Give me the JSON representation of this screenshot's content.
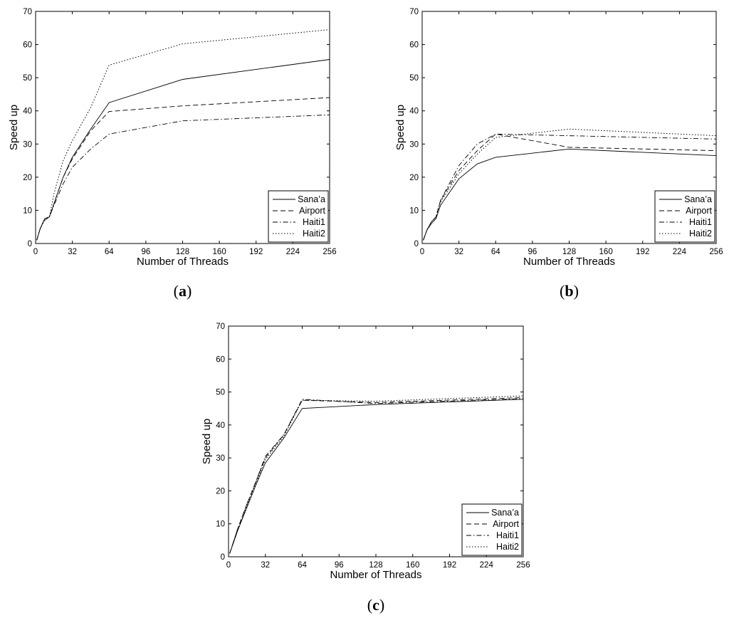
{
  "chart_data": [
    {
      "panel": "a",
      "type": "line",
      "caption": {
        "open": "(",
        "letter": "a",
        "close": ")"
      },
      "xlabel": "Number of Threads",
      "ylabel": "Speed up",
      "xlim": [
        0,
        256
      ],
      "ylim": [
        0,
        70
      ],
      "xticks": [
        0,
        32,
        64,
        96,
        128,
        160,
        192,
        224,
        256
      ],
      "yticks": [
        0,
        10,
        20,
        30,
        40,
        50,
        60,
        70
      ],
      "grid": false,
      "legend_position": "bottom-right",
      "series": [
        {
          "name": "Sana’a",
          "dash": "solid",
          "points": [
            [
              1,
              1
            ],
            [
              4,
              4.5
            ],
            [
              8,
              7.5
            ],
            [
              12,
              8
            ],
            [
              16,
              12
            ],
            [
              24,
              20
            ],
            [
              32,
              26
            ],
            [
              48,
              34.5
            ],
            [
              64,
              42.5
            ],
            [
              128,
              49.5
            ],
            [
              256,
              55.5
            ]
          ]
        },
        {
          "name": "Airport",
          "dash": "dashed",
          "points": [
            [
              1,
              1
            ],
            [
              4,
              4.5
            ],
            [
              8,
              7.5
            ],
            [
              12,
              8
            ],
            [
              16,
              12
            ],
            [
              24,
              20
            ],
            [
              32,
              25.5
            ],
            [
              48,
              34
            ],
            [
              64,
              39.8
            ],
            [
              128,
              41.5
            ],
            [
              256,
              44
            ]
          ]
        },
        {
          "name": "Haiti1",
          "dash": "dashdot",
          "points": [
            [
              1,
              1
            ],
            [
              4,
              4.5
            ],
            [
              8,
              7
            ],
            [
              12,
              8
            ],
            [
              16,
              11.5
            ],
            [
              24,
              18
            ],
            [
              32,
              23
            ],
            [
              48,
              28.5
            ],
            [
              64,
              33
            ],
            [
              128,
              37
            ],
            [
              256,
              38.8
            ]
          ]
        },
        {
          "name": "Haiti2",
          "dash": "dotted",
          "points": [
            [
              1,
              1
            ],
            [
              4,
              4.5
            ],
            [
              8,
              7.5
            ],
            [
              12,
              8
            ],
            [
              16,
              15
            ],
            [
              24,
              25
            ],
            [
              32,
              31
            ],
            [
              48,
              41
            ],
            [
              64,
              53.8
            ],
            [
              128,
              60.2
            ],
            [
              256,
              64.5
            ]
          ]
        }
      ]
    },
    {
      "panel": "b",
      "type": "line",
      "caption": {
        "open": "(",
        "letter": "b",
        "close": ")"
      },
      "xlabel": "Number of Threads",
      "ylabel": "Speed up",
      "xlim": [
        0,
        256
      ],
      "ylim": [
        0,
        70
      ],
      "xticks": [
        0,
        32,
        64,
        96,
        128,
        160,
        192,
        224,
        256
      ],
      "yticks": [
        0,
        10,
        20,
        30,
        40,
        50,
        60,
        70
      ],
      "grid": false,
      "legend_position": "bottom-right",
      "series": [
        {
          "name": "Sana’a",
          "dash": "solid",
          "points": [
            [
              1,
              1
            ],
            [
              4,
              4
            ],
            [
              8,
              6
            ],
            [
              12,
              7.5
            ],
            [
              16,
              11.5
            ],
            [
              32,
              19.5
            ],
            [
              48,
              24
            ],
            [
              64,
              26
            ],
            [
              128,
              28.5
            ],
            [
              256,
              26.5
            ]
          ]
        },
        {
          "name": "Airport",
          "dash": "dashed",
          "points": [
            [
              1,
              1
            ],
            [
              4,
              4
            ],
            [
              8,
              6.5
            ],
            [
              12,
              8
            ],
            [
              16,
              13
            ],
            [
              32,
              22
            ],
            [
              48,
              28
            ],
            [
              64,
              33
            ],
            [
              128,
              29
            ],
            [
              256,
              28
            ]
          ]
        },
        {
          "name": "Haiti1",
          "dash": "dashdot",
          "points": [
            [
              1,
              1
            ],
            [
              4,
              4
            ],
            [
              8,
              6.5
            ],
            [
              12,
              8
            ],
            [
              16,
              13
            ],
            [
              32,
              23.5
            ],
            [
              48,
              30
            ],
            [
              64,
              33
            ],
            [
              128,
              32.5
            ],
            [
              256,
              31.5
            ]
          ]
        },
        {
          "name": "Haiti2",
          "dash": "dotted",
          "points": [
            [
              1,
              1
            ],
            [
              4,
              4
            ],
            [
              8,
              6.5
            ],
            [
              12,
              8
            ],
            [
              16,
              12.5
            ],
            [
              32,
              21
            ],
            [
              48,
              27
            ],
            [
              64,
              32
            ],
            [
              128,
              34.5
            ],
            [
              256,
              32.5
            ]
          ]
        }
      ]
    },
    {
      "panel": "c",
      "type": "line",
      "caption": {
        "open": "(",
        "letter": "c",
        "close": ")"
      },
      "xlabel": "Number of Threads",
      "ylabel": "Speed up",
      "xlim": [
        0,
        256
      ],
      "ylim": [
        0,
        70
      ],
      "xticks": [
        0,
        32,
        64,
        96,
        128,
        160,
        192,
        224,
        256
      ],
      "yticks": [
        0,
        10,
        20,
        30,
        40,
        50,
        60,
        70
      ],
      "grid": false,
      "legend_position": "bottom-right",
      "series": [
        {
          "name": "Sana’a",
          "dash": "solid",
          "points": [
            [
              1,
              1
            ],
            [
              8,
              8
            ],
            [
              16,
              15
            ],
            [
              24,
              22
            ],
            [
              32,
              28.5
            ],
            [
              48,
              36
            ],
            [
              64,
              45
            ],
            [
              128,
              46.2
            ],
            [
              256,
              47.8
            ]
          ]
        },
        {
          "name": "Airport",
          "dash": "dashed",
          "points": [
            [
              1,
              1
            ],
            [
              8,
              8.5
            ],
            [
              16,
              16
            ],
            [
              24,
              23
            ],
            [
              32,
              30
            ],
            [
              48,
              37
            ],
            [
              64,
              47.5
            ],
            [
              128,
              46.8
            ],
            [
              256,
              48.3
            ]
          ]
        },
        {
          "name": "Haiti1",
          "dash": "dashdot",
          "points": [
            [
              1,
              1
            ],
            [
              8,
              8.5
            ],
            [
              16,
              16
            ],
            [
              24,
              23
            ],
            [
              32,
              30.5
            ],
            [
              48,
              37
            ],
            [
              64,
              47.8
            ],
            [
              128,
              46.5
            ],
            [
              256,
              48
            ]
          ]
        },
        {
          "name": "Haiti2",
          "dash": "dotted",
          "points": [
            [
              1,
              1
            ],
            [
              8,
              8
            ],
            [
              16,
              15.5
            ],
            [
              24,
              22.5
            ],
            [
              32,
              29.5
            ],
            [
              48,
              36.5
            ],
            [
              64,
              47.5
            ],
            [
              128,
              47.2
            ],
            [
              256,
              48.8
            ]
          ]
        }
      ]
    }
  ]
}
